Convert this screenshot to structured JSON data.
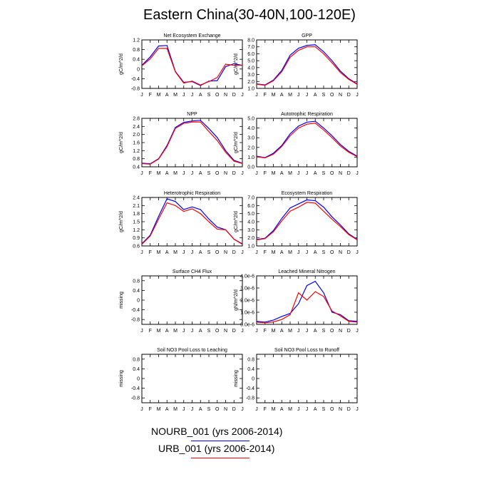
{
  "title": "Eastern China(30-40N,100-120E)",
  "colors": {
    "blue": "#0000ff",
    "red": "#ff0000",
    "axis": "#000000"
  },
  "chart_data": [
    {
      "type": "line",
      "title": "Net Ecosystem Exchange",
      "ylabel": "gC/m^2/d",
      "ylim": [
        -0.8,
        1.2
      ],
      "yticks": [
        -0.8,
        -0.4,
        0.0,
        0.4,
        0.8,
        1.2
      ],
      "ytick_labels": [
        "-0.8",
        "-0.4",
        "0",
        "0.4",
        "0.8",
        "1.2"
      ],
      "categories": [
        "J",
        "F",
        "M",
        "A",
        "M",
        "J",
        "J",
        "A",
        "S",
        "O",
        "N",
        "D",
        "J"
      ],
      "series": [
        {
          "color": "blue",
          "values": [
            0.15,
            0.5,
            0.95,
            0.97,
            -0.1,
            -0.55,
            -0.52,
            -0.68,
            -0.5,
            -0.48,
            0.1,
            0.22,
            0.15
          ]
        },
        {
          "color": "red",
          "values": [
            0.13,
            0.42,
            0.85,
            0.85,
            -0.12,
            -0.58,
            -0.5,
            -0.66,
            -0.52,
            -0.35,
            0.2,
            0.15,
            0.15
          ]
        }
      ]
    },
    {
      "type": "line",
      "title": "GPP",
      "ylabel": "gC/m^2/d",
      "ylim": [
        1.0,
        8.0
      ],
      "yticks": [
        1,
        2,
        3,
        4,
        5,
        6,
        7,
        8
      ],
      "ytick_labels": [
        "1.0",
        "2.0",
        "3.0",
        "4.0",
        "5.0",
        "6.0",
        "7.0",
        "8.0"
      ],
      "categories": [
        "J",
        "F",
        "M",
        "A",
        "M",
        "J",
        "J",
        "A",
        "S",
        "O",
        "N",
        "D",
        "J"
      ],
      "series": [
        {
          "color": "blue",
          "values": [
            1.65,
            1.5,
            2.2,
            3.6,
            5.8,
            6.8,
            7.2,
            7.3,
            6.3,
            5.0,
            3.5,
            2.4,
            1.65
          ]
        },
        {
          "color": "red",
          "values": [
            1.6,
            1.45,
            2.1,
            3.4,
            5.5,
            6.5,
            7.0,
            7.0,
            6.0,
            4.7,
            3.3,
            2.3,
            1.6
          ]
        }
      ]
    },
    {
      "type": "line",
      "title": "NPP",
      "ylabel": "gC/m^2/d",
      "ylim": [
        0.4,
        2.8
      ],
      "yticks": [
        0.4,
        0.8,
        1.2,
        1.6,
        2.0,
        2.4,
        2.8
      ],
      "ytick_labels": [
        "0.4",
        "0.8",
        "1.2",
        "1.6",
        "2.0",
        "2.4",
        "2.8"
      ],
      "categories": [
        "J",
        "F",
        "M",
        "A",
        "M",
        "J",
        "J",
        "A",
        "S",
        "O",
        "N",
        "D",
        "J"
      ],
      "series": [
        {
          "color": "blue",
          "values": [
            0.58,
            0.55,
            0.8,
            1.45,
            2.35,
            2.6,
            2.67,
            2.7,
            2.3,
            1.85,
            1.2,
            0.72,
            0.58
          ]
        },
        {
          "color": "red",
          "values": [
            0.56,
            0.53,
            0.78,
            1.4,
            2.3,
            2.55,
            2.62,
            2.62,
            2.15,
            1.7,
            1.12,
            0.68,
            0.56
          ]
        }
      ]
    },
    {
      "type": "line",
      "title": "Autotrophic Respiration",
      "ylabel": "gC/m^2/d",
      "ylim": [
        0.0,
        5.0
      ],
      "yticks": [
        0,
        1,
        2,
        3,
        4,
        5
      ],
      "ytick_labels": [
        "0.0",
        "1.0",
        "2.0",
        "3.0",
        "4.0",
        "5.0"
      ],
      "categories": [
        "J",
        "F",
        "M",
        "A",
        "M",
        "J",
        "J",
        "A",
        "S",
        "O",
        "N",
        "D",
        "J"
      ],
      "series": [
        {
          "color": "blue",
          "values": [
            1.1,
            0.95,
            1.4,
            2.2,
            3.4,
            4.2,
            4.6,
            4.7,
            4.0,
            3.2,
            2.3,
            1.6,
            1.1
          ]
        },
        {
          "color": "red",
          "values": [
            1.05,
            0.92,
            1.3,
            2.1,
            3.2,
            4.0,
            4.4,
            4.5,
            3.8,
            3.0,
            2.15,
            1.5,
            1.05
          ]
        }
      ]
    },
    {
      "type": "line",
      "title": "Heterotrophic Respiration",
      "ylabel": "gC/m^2/d",
      "ylim": [
        0.6,
        2.4
      ],
      "yticks": [
        0.6,
        0.9,
        1.2,
        1.5,
        1.8,
        2.1,
        2.4
      ],
      "ytick_labels": [
        "0.6",
        "0.9",
        "1.2",
        "1.5",
        "1.8",
        "2.1",
        "2.4"
      ],
      "categories": [
        "J",
        "F",
        "M",
        "A",
        "M",
        "J",
        "J",
        "A",
        "S",
        "O",
        "N",
        "D",
        "J"
      ],
      "series": [
        {
          "color": "blue",
          "values": [
            0.68,
            1.0,
            1.7,
            2.35,
            2.25,
            1.95,
            2.05,
            1.95,
            1.6,
            1.3,
            1.2,
            0.85,
            0.68
          ]
        },
        {
          "color": "red",
          "values": [
            0.66,
            0.97,
            1.6,
            2.2,
            2.1,
            1.88,
            1.98,
            1.8,
            1.5,
            1.22,
            1.2,
            0.85,
            0.66
          ]
        }
      ]
    },
    {
      "type": "line",
      "title": "Ecosystem Respiration",
      "ylabel": "gC/m^2/d",
      "ylim": [
        1.0,
        7.0
      ],
      "yticks": [
        1,
        2,
        3,
        4,
        5,
        6,
        7
      ],
      "ytick_labels": [
        "1.0",
        "2.0",
        "3.0",
        "4.0",
        "5.0",
        "6.0",
        "7.0"
      ],
      "categories": [
        "J",
        "F",
        "M",
        "A",
        "M",
        "J",
        "J",
        "A",
        "S",
        "O",
        "N",
        "D",
        "J"
      ],
      "series": [
        {
          "color": "blue",
          "values": [
            1.8,
            1.95,
            2.9,
            4.4,
            5.7,
            6.2,
            6.7,
            6.6,
            5.8,
            4.6,
            3.6,
            2.5,
            1.8
          ]
        },
        {
          "color": "red",
          "values": [
            1.75,
            1.9,
            2.75,
            4.1,
            5.3,
            5.8,
            6.4,
            6.3,
            5.3,
            4.3,
            3.4,
            2.4,
            1.75
          ]
        }
      ]
    },
    {
      "type": "line",
      "title": "Surface CH4 Flux",
      "ylabel": "missing",
      "ylim": [
        -1.0,
        1.0
      ],
      "yticks": [
        -0.8,
        -0.4,
        0.0,
        0.4,
        0.8
      ],
      "ytick_labels": [
        "-0.8",
        "-0.4",
        "0",
        "0.4",
        "0.8"
      ],
      "categories": [
        "J",
        "F",
        "M",
        "A",
        "M",
        "J",
        "J",
        "A",
        "S",
        "O",
        "N",
        "D",
        "J"
      ],
      "series": []
    },
    {
      "type": "line",
      "title": "Leached Mineral Nitrogen",
      "ylabel": "gN/m^2/d",
      "ylim": [
        0.0,
        4e-06
      ],
      "yticks": [
        0,
        1e-06,
        2e-06,
        3e-06,
        4e-06
      ],
      "ytick_labels": [
        "0.0e-6",
        "1.0e-6",
        "2.0e-6",
        "3.0e-6",
        "4.0e-6"
      ],
      "categories": [
        "J",
        "F",
        "M",
        "A",
        "M",
        "J",
        "J",
        "A",
        "S",
        "O",
        "N",
        "D",
        "J"
      ],
      "series": [
        {
          "color": "blue",
          "values": [
            2.5e-07,
            1.8e-07,
            3.5e-07,
            6.5e-07,
            9e-07,
            1.7e-06,
            3.2e-06,
            3.55e-06,
            2.6e-06,
            1e-06,
            8e-07,
            3e-07,
            2.5e-07
          ]
        },
        {
          "color": "red",
          "values": [
            1.8e-07,
            1.3e-07,
            2e-07,
            4e-07,
            8e-07,
            2.6e-06,
            2e-06,
            2.7e-06,
            2.3e-06,
            1.1e-06,
            7e-07,
            2.5e-07,
            1.8e-07
          ]
        }
      ]
    },
    {
      "type": "line",
      "title": "Soil NO3 Pool Loss to Leaching",
      "ylabel": "missing",
      "ylim": [
        -1.0,
        1.0
      ],
      "yticks": [
        -0.8,
        -0.4,
        0.0,
        0.4,
        0.8
      ],
      "ytick_labels": [
        "-0.8",
        "-0.4",
        "0",
        "0.4",
        "0.8"
      ],
      "categories": [
        "J",
        "F",
        "M",
        "A",
        "M",
        "J",
        "J",
        "A",
        "S",
        "O",
        "N",
        "D",
        "J"
      ],
      "series": []
    },
    {
      "type": "line",
      "title": "Soil NO3 Pool Loss to Runoff",
      "ylabel": "missing",
      "ylim": [
        -1.0,
        1.0
      ],
      "yticks": [
        -0.8,
        -0.4,
        0.0,
        0.4,
        0.8
      ],
      "ytick_labels": [
        "-0.8",
        "-0.4",
        "0",
        "0.4",
        "0.8"
      ],
      "categories": [
        "J",
        "F",
        "M",
        "A",
        "M",
        "J",
        "J",
        "A",
        "S",
        "O",
        "N",
        "D",
        "J"
      ],
      "series": []
    }
  ],
  "legend": [
    {
      "label": "NOURB_001 (yrs 2006-2014)",
      "color": "blue"
    },
    {
      "label": "URB_001 (yrs 2006-2014)",
      "color": "red"
    }
  ]
}
